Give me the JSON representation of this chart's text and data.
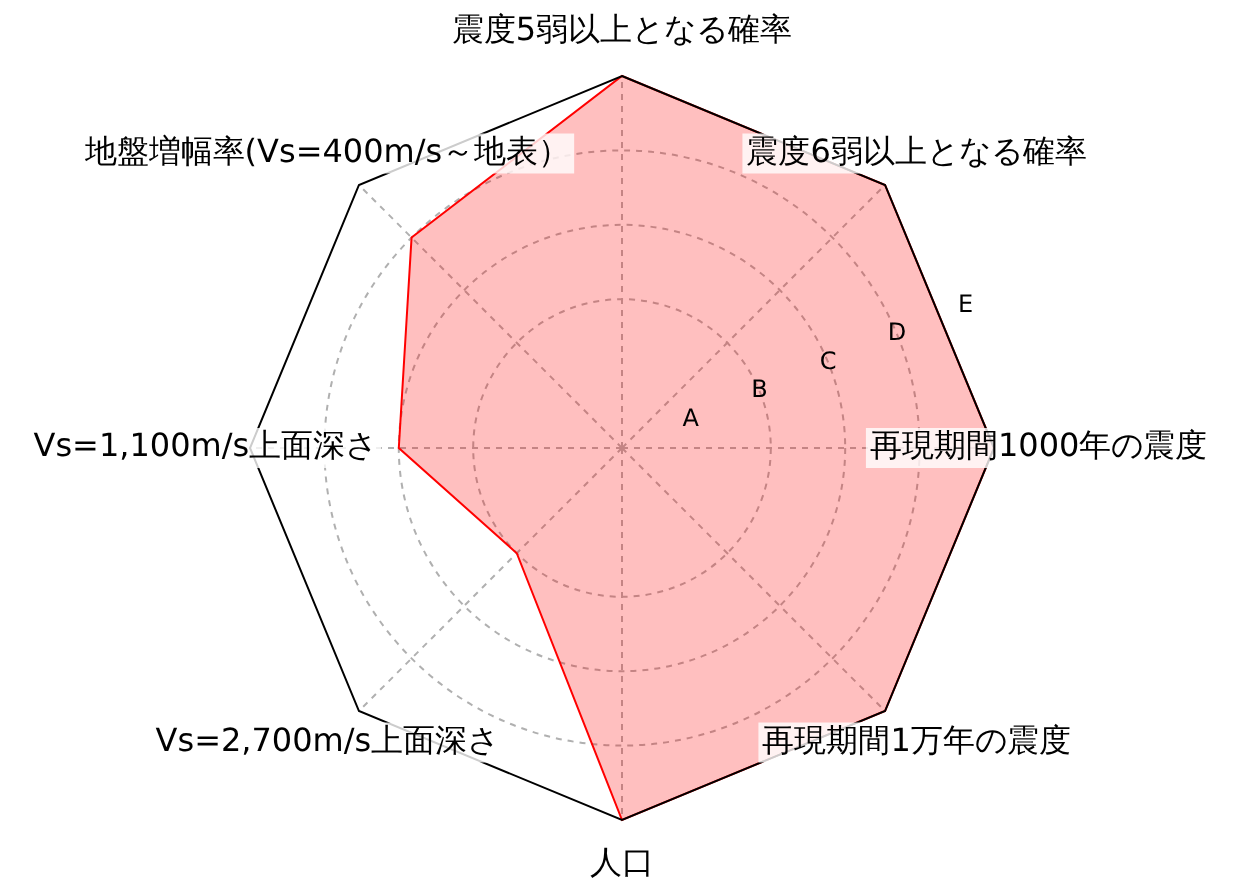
{
  "chart_data": {
    "type": "radar",
    "categories": [
      "震度5弱以上となる確率",
      "震度6弱以上となる確率",
      "再現期間1000年の震度",
      "再現期間1万年の震度",
      "人口",
      "Vs=2,700m/s上面深さ",
      "Vs=1,100m/s上面深さ",
      "地盤増幅率(Vs=400m/s～地表）"
    ],
    "series": [
      {
        "color": "#ff0000",
        "values": [
          5,
          5,
          5,
          5,
          5,
          2,
          3,
          4
        ]
      }
    ],
    "ylim": [
      0,
      5
    ],
    "yticks": [
      {
        "value": 1,
        "label": "A"
      },
      {
        "value": 2,
        "label": "B"
      },
      {
        "value": 3,
        "label": "C"
      },
      {
        "value": 4,
        "label": "D"
      },
      {
        "value": 5,
        "label": "E"
      }
    ],
    "grid": true,
    "legend": false
  }
}
